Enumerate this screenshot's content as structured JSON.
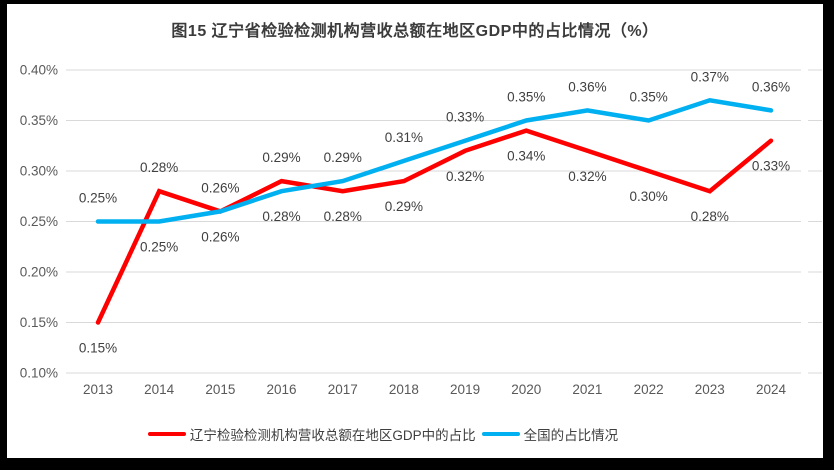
{
  "chart_data": {
    "type": "line",
    "title": "图15 辽宁省检验检测机构营收总额在地区GDP中的占比情况（%）",
    "categories": [
      "2013",
      "2014",
      "2015",
      "2016",
      "2017",
      "2018",
      "2019",
      "2020",
      "2021",
      "2022",
      "2023",
      "2024"
    ],
    "y_axis": {
      "ticks": [
        "0.40%",
        "0.35%",
        "0.30%",
        "0.25%",
        "0.20%",
        "0.15%",
        "0.10%"
      ],
      "min": 0.1,
      "max": 0.4,
      "grid": true,
      "grid_color": "#d9d9d9",
      "tick_color": "#595959"
    },
    "series": [
      {
        "name": "辽宁检验检测机构营收总额在地区GDP中的占比",
        "color": "#ff0000",
        "values": [
          0.15,
          0.28,
          0.26,
          0.29,
          0.28,
          0.29,
          0.32,
          0.34,
          0.32,
          0.3,
          0.28,
          0.33
        ],
        "labels": [
          "0.15%",
          "0.28%",
          "0.26%",
          "0.29%",
          "0.28%",
          "0.29%",
          "0.32%",
          "0.34%",
          "0.32%",
          "0.30%",
          "0.28%",
          "0.33%"
        ]
      },
      {
        "name": "全国的占比情况",
        "color": "#00b0f0",
        "values": [
          0.25,
          0.25,
          0.26,
          0.28,
          0.29,
          0.31,
          0.33,
          0.35,
          0.36,
          0.35,
          0.37,
          0.36
        ],
        "labels": [
          "0.25%",
          "0.25%",
          "0.26%",
          "0.28%",
          "0.29%",
          "0.31%",
          "0.33%",
          "0.35%",
          "0.36%",
          "0.35%",
          "0.37%",
          "0.36%"
        ]
      }
    ],
    "data_label_color": "#404040",
    "legend_position": "bottom"
  }
}
